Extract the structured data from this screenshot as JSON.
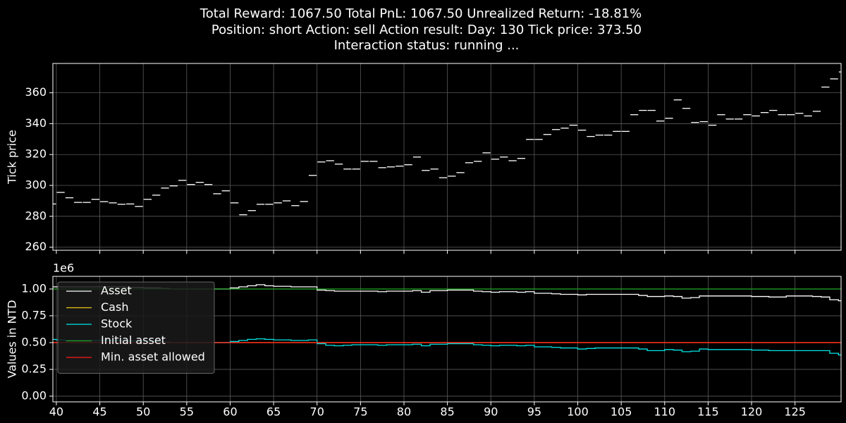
{
  "title": [
    "Total Reward: 1067.50  Total PnL: 1067.50  Unrealized Return: -18.81%",
    "Position: short  Action: sell  Action result:    Day: 130  Tick price: 373.50",
    "Interaction status: running ..."
  ],
  "chart_data": [
    {
      "type": "segments",
      "ylabel": "Tick price",
      "color": "#ffffff",
      "x": [
        39,
        40,
        41,
        42,
        43,
        44,
        45,
        46,
        47,
        48,
        49,
        50,
        51,
        52,
        53,
        54,
        55,
        56,
        57,
        58,
        59,
        60,
        61,
        62,
        63,
        64,
        65,
        66,
        67,
        68,
        69,
        70,
        71,
        72,
        73,
        74,
        75,
        76,
        77,
        78,
        79,
        80,
        81,
        82,
        83,
        84,
        85,
        86,
        87,
        88,
        89,
        90,
        91,
        92,
        93,
        94,
        95,
        96,
        97,
        98,
        99,
        100,
        101,
        102,
        103,
        104,
        105,
        106,
        107,
        108,
        109,
        110,
        111,
        112,
        113,
        114,
        115,
        116,
        117,
        118,
        119,
        120,
        121,
        122,
        123,
        124,
        125,
        126,
        127,
        128,
        129,
        130
      ],
      "values": [
        288,
        295.5,
        292,
        289,
        289,
        291,
        289.5,
        288.7,
        287.8,
        288,
        286.4,
        291,
        293.7,
        298.3,
        299.7,
        303.3,
        300.6,
        302,
        300.6,
        294.6,
        296.5,
        288.7,
        281,
        283.7,
        287.8,
        287.8,
        288.7,
        290,
        286.9,
        289.6,
        306.5,
        315.2,
        316,
        313.8,
        310.6,
        310.6,
        315.6,
        315.6,
        311.5,
        312,
        312.5,
        313.4,
        318.4,
        309.7,
        310.6,
        305,
        306,
        308.3,
        314.7,
        315.6,
        321.1,
        317,
        318.4,
        316,
        317.5,
        329.8,
        329.8,
        333,
        336.2,
        337.1,
        339,
        335.8,
        331.7,
        332.6,
        332.6,
        335,
        335,
        345.8,
        348.6,
        348.6,
        341.7,
        343.5,
        355.4,
        349.9,
        340.8,
        341.3,
        339,
        345.8,
        343,
        343,
        345.8,
        345,
        347.2,
        348.6,
        345.8,
        345.8,
        346.7,
        345,
        348,
        363.7,
        369,
        373.5
      ],
      "xlim": [
        39.6,
        130.3
      ],
      "ylim": [
        258,
        379
      ],
      "xticks": [
        40,
        45,
        50,
        55,
        60,
        65,
        70,
        75,
        80,
        85,
        90,
        95,
        100,
        105,
        110,
        115,
        120,
        125
      ],
      "yticks": [
        260,
        280,
        300,
        320,
        340,
        360
      ],
      "grid": true
    },
    {
      "type": "step",
      "ylabel": "Values in NTD",
      "offset_label": "1e6",
      "legend": "upper left",
      "x": [
        39,
        40,
        41,
        42,
        43,
        44,
        45,
        46,
        47,
        48,
        49,
        50,
        51,
        52,
        53,
        54,
        55,
        56,
        57,
        58,
        59,
        60,
        61,
        62,
        63,
        64,
        65,
        66,
        67,
        68,
        69,
        70,
        71,
        72,
        73,
        74,
        75,
        76,
        77,
        78,
        79,
        80,
        81,
        82,
        83,
        84,
        85,
        86,
        87,
        88,
        89,
        90,
        91,
        92,
        93,
        94,
        95,
        96,
        97,
        98,
        99,
        100,
        101,
        102,
        103,
        104,
        105,
        106,
        107,
        108,
        109,
        110,
        111,
        112,
        113,
        114,
        115,
        116,
        117,
        118,
        119,
        120,
        121,
        122,
        123,
        124,
        125,
        126,
        127,
        128,
        129,
        130
      ],
      "series": [
        {
          "name": "Asset",
          "color": "#ffffff",
          "values": [
            1020000,
            1020000,
            1020000,
            1020000,
            1020000,
            1020000,
            1020000,
            1020000,
            1020000,
            1015000,
            1015000,
            1010000,
            1010000,
            1005000,
            1000000,
            1000000,
            1000000,
            1000000,
            1000000,
            1000000,
            1000000,
            1010000,
            1020000,
            1030000,
            1040000,
            1030000,
            1025000,
            1025000,
            1020000,
            1020000,
            1020000,
            990000,
            985000,
            980000,
            980000,
            980000,
            980000,
            980000,
            975000,
            980000,
            980000,
            980000,
            985000,
            970000,
            985000,
            985000,
            990000,
            990000,
            990000,
            980000,
            975000,
            970000,
            975000,
            975000,
            970000,
            975000,
            960000,
            960000,
            955000,
            950000,
            950000,
            945000,
            950000,
            950000,
            950000,
            950000,
            950000,
            950000,
            940000,
            930000,
            930000,
            935000,
            930000,
            915000,
            920000,
            935000,
            935000,
            935000,
            935000,
            935000,
            935000,
            930000,
            930000,
            925000,
            925000,
            935000,
            935000,
            935000,
            930000,
            925000,
            900000,
            890000
          ]
        },
        {
          "name": "Cash",
          "color": "#e6c619",
          "values": [
            500000,
            500000,
            500000,
            500000,
            500000,
            500000,
            500000,
            500000,
            500000,
            500000,
            500000,
            500000,
            500000,
            500000,
            500000,
            500000,
            500000,
            500000,
            500000,
            500000,
            500000,
            500000,
            500000,
            500000,
            500000,
            500000,
            500000,
            500000,
            500000,
            500000,
            500000,
            500000,
            500000,
            500000,
            500000,
            500000,
            500000,
            500000,
            500000,
            500000,
            500000,
            500000,
            500000,
            500000,
            500000,
            500000,
            500000,
            500000,
            500000,
            500000,
            500000,
            500000,
            500000,
            500000,
            500000,
            500000,
            500000,
            500000,
            500000,
            500000,
            500000,
            500000,
            500000,
            500000,
            500000,
            500000,
            500000,
            500000,
            500000,
            500000,
            500000,
            500000,
            500000,
            500000,
            500000,
            500000,
            500000,
            500000,
            500000,
            500000,
            500000,
            500000,
            500000,
            500000,
            500000,
            500000,
            500000,
            500000,
            500000,
            500000,
            500000,
            500000
          ]
        },
        {
          "name": "Stock",
          "color": "#00e5e5",
          "values": [
            530000,
            525000,
            520000,
            520000,
            520000,
            520000,
            520000,
            520000,
            520000,
            515000,
            515000,
            510000,
            510000,
            505000,
            500000,
            500000,
            500000,
            500000,
            500000,
            500000,
            500000,
            510000,
            520000,
            530000,
            535000,
            530000,
            525000,
            525000,
            520000,
            520000,
            525000,
            490000,
            475000,
            470000,
            475000,
            480000,
            480000,
            480000,
            475000,
            480000,
            480000,
            480000,
            485000,
            470000,
            485000,
            485000,
            490000,
            490000,
            490000,
            480000,
            475000,
            470000,
            475000,
            475000,
            470000,
            475000,
            460000,
            460000,
            455000,
            450000,
            450000,
            440000,
            445000,
            450000,
            450000,
            450000,
            450000,
            450000,
            440000,
            425000,
            425000,
            435000,
            430000,
            415000,
            420000,
            440000,
            435000,
            435000,
            435000,
            435000,
            435000,
            430000,
            430000,
            425000,
            425000,
            425000,
            425000,
            425000,
            425000,
            425000,
            400000,
            385000
          ]
        },
        {
          "name": "Initial asset",
          "color": "#1f9e1f",
          "values": [
            1000000,
            1000000,
            1000000,
            1000000,
            1000000,
            1000000,
            1000000,
            1000000,
            1000000,
            1000000,
            1000000,
            1000000,
            1000000,
            1000000,
            1000000,
            1000000,
            1000000,
            1000000,
            1000000,
            1000000,
            1000000,
            1000000,
            1000000,
            1000000,
            1000000,
            1000000,
            1000000,
            1000000,
            1000000,
            1000000,
            1000000,
            1000000,
            1000000,
            1000000,
            1000000,
            1000000,
            1000000,
            1000000,
            1000000,
            1000000,
            1000000,
            1000000,
            1000000,
            1000000,
            1000000,
            1000000,
            1000000,
            1000000,
            1000000,
            1000000,
            1000000,
            1000000,
            1000000,
            1000000,
            1000000,
            1000000,
            1000000,
            1000000,
            1000000,
            1000000,
            1000000,
            1000000,
            1000000,
            1000000,
            1000000,
            1000000,
            1000000,
            1000000,
            1000000,
            1000000,
            1000000,
            1000000,
            1000000,
            1000000,
            1000000,
            1000000,
            1000000,
            1000000,
            1000000,
            1000000,
            1000000,
            1000000,
            1000000,
            1000000,
            1000000,
            1000000,
            1000000,
            1000000,
            1000000,
            1000000,
            1000000,
            1000000
          ]
        },
        {
          "name": "Min. asset allowed",
          "color": "#ff1a1a",
          "values": [
            500000,
            500000,
            500000,
            500000,
            500000,
            500000,
            500000,
            500000,
            500000,
            500000,
            500000,
            500000,
            500000,
            500000,
            500000,
            500000,
            500000,
            500000,
            500000,
            500000,
            500000,
            500000,
            500000,
            500000,
            500000,
            500000,
            500000,
            500000,
            500000,
            500000,
            500000,
            500000,
            500000,
            500000,
            500000,
            500000,
            500000,
            500000,
            500000,
            500000,
            500000,
            500000,
            500000,
            500000,
            500000,
            500000,
            500000,
            500000,
            500000,
            500000,
            500000,
            500000,
            500000,
            500000,
            500000,
            500000,
            500000,
            500000,
            500000,
            500000,
            500000,
            500000,
            500000,
            500000,
            500000,
            500000,
            500000,
            500000,
            500000,
            500000,
            500000,
            500000,
            500000,
            500000,
            500000,
            500000,
            500000,
            500000,
            500000,
            500000,
            500000,
            500000,
            500000,
            500000,
            500000,
            500000,
            500000,
            500000,
            500000,
            500000,
            500000,
            500000
          ]
        }
      ],
      "xlim": [
        39.6,
        130.3
      ],
      "ylim": [
        -53000,
        1118000
      ],
      "xticks": [
        40,
        45,
        50,
        55,
        60,
        65,
        70,
        75,
        80,
        85,
        90,
        95,
        100,
        105,
        110,
        115,
        120,
        125
      ],
      "yticks": [
        {
          "value": 0,
          "label": "0.00"
        },
        {
          "value": 250000,
          "label": "0.25"
        },
        {
          "value": 500000,
          "label": "0.50"
        },
        {
          "value": 750000,
          "label": "0.75"
        },
        {
          "value": 1000000,
          "label": "1.00"
        }
      ],
      "grid": true
    }
  ]
}
